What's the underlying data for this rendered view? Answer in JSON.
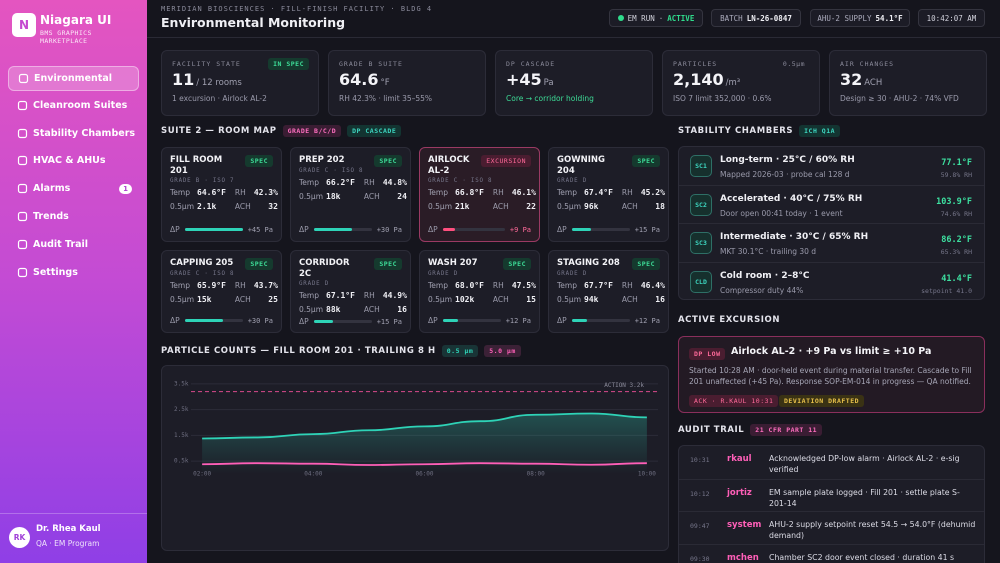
{
  "sidebar": {
    "brand_mark": "N",
    "brand": "Niagara UI",
    "brand_sub": "BMS GRAPHICS MARKETPLACE",
    "nav": [
      {
        "label": "Environmental",
        "active": true
      },
      {
        "label": "Cleanroom Suites"
      },
      {
        "label": "Stability Chambers"
      },
      {
        "label": "HVAC & AHUs"
      },
      {
        "label": "Alarms",
        "badge": "1"
      },
      {
        "label": "Trends"
      },
      {
        "label": "Audit Trail"
      },
      {
        "label": "Settings"
      }
    ],
    "user": {
      "initials": "RK",
      "name": "Dr. Rhea Kaul",
      "role": "QA · EM Program"
    }
  },
  "header": {
    "breadcrumb": "MERIDIAN BIOSCIENCES · FILL-FINISH FACILITY · BLDG 4",
    "title": "Environmental Monitoring",
    "status": {
      "label": "EM RUN",
      "separator": "·",
      "state": "ACTIVE"
    },
    "batch": {
      "label": "BATCH",
      "value": "LN-26-0847"
    },
    "supply": {
      "label": "AHU-2 SUPPLY",
      "value": "54.1°F"
    },
    "clock": "10:42:07 AM"
  },
  "kpis": [
    {
      "label": "FACILITY STATE",
      "tag": "IN SPEC",
      "tag_tone": "good",
      "value": "11",
      "unit": "/ 12 rooms",
      "sub": "1 excursion · Airlock AL-2"
    },
    {
      "label": "GRADE B SUITE",
      "value": "64.6",
      "unit": "°F",
      "sub": "RH 42.3% · limit 35–55%"
    },
    {
      "label": "DP CASCADE",
      "value": "+45",
      "unit": "Pa",
      "sub": "Core → corridor holding",
      "sub_tone": "good"
    },
    {
      "label": "PARTICLES",
      "tag": "0.5µm",
      "tag_tone": "muted",
      "value": "2,140",
      "unit": "/m³",
      "sub": "ISO 7 limit 352,000 · 0.6%"
    },
    {
      "label": "AIR CHANGES",
      "value": "32",
      "unit": "ACH",
      "sub": "Design ≥ 30 · AHU-2 · 74% VFD"
    }
  ],
  "room_map": {
    "title": "SUITE 2 — ROOM MAP",
    "tags": [
      "GRADE B/C/D",
      "DP CASCADE"
    ],
    "field_labels": {
      "temp": "Temp",
      "rh": "RH",
      "particles": "0.5µm",
      "ach": "ACH",
      "dp": "ΔP"
    },
    "rooms": [
      {
        "name": "FILL ROOM 201",
        "status": "SPEC",
        "grade": "GRADE B · ISO 7",
        "temp": "64.6°F",
        "rh": "42.3%",
        "particles": "2.1k",
        "ach": "32",
        "dp": {
          "value": 45,
          "label": "+45 Pa"
        }
      },
      {
        "name": "PREP 202",
        "status": "SPEC",
        "grade": "GRADE C · ISO 8",
        "temp": "66.2°F",
        "rh": "44.8%",
        "particles": "18k",
        "ach": "24",
        "dp": {
          "value": 30,
          "label": "+30 Pa"
        }
      },
      {
        "name": "AIRLOCK AL-2",
        "status": "EXCURSION",
        "alert": true,
        "grade": "GRADE C · ISO 8",
        "temp": "66.8°F",
        "rh": "46.1%",
        "particles": "21k",
        "ach": "22",
        "dp": {
          "value": 9,
          "label": "+9 Pa"
        }
      },
      {
        "name": "GOWNING 204",
        "status": "SPEC",
        "grade": "GRADE D",
        "temp": "67.4°F",
        "rh": "45.2%",
        "particles": "96k",
        "ach": "18",
        "dp": {
          "value": 15,
          "label": "+15 Pa"
        }
      },
      {
        "name": "CAPPING 205",
        "status": "SPEC",
        "grade": "GRADE C · ISO 8",
        "temp": "65.9°F",
        "rh": "43.7%",
        "particles": "15k",
        "ach": "25",
        "dp": {
          "value": 30,
          "label": "+30 Pa"
        }
      },
      {
        "name": "CORRIDOR 2C",
        "status": "SPEC",
        "grade": "GRADE D",
        "temp": "67.1°F",
        "rh": "44.9%",
        "particles": "88k",
        "ach": "16",
        "dp": {
          "value": 15,
          "label": "+15 Pa"
        }
      },
      {
        "name": "WASH 207",
        "status": "SPEC",
        "grade": "GRADE D",
        "temp": "68.0°F",
        "rh": "47.5%",
        "particles": "102k",
        "ach": "15",
        "dp": {
          "value": 12,
          "label": "+12 Pa"
        }
      },
      {
        "name": "STAGING 208",
        "status": "SPEC",
        "grade": "GRADE D",
        "temp": "67.7°F",
        "rh": "46.4%",
        "particles": "94k",
        "ach": "16",
        "dp": {
          "value": 12,
          "label": "+12 Pa"
        }
      }
    ]
  },
  "chart_data": {
    "type": "line",
    "title": "PARTICLE COUNTS — FILL ROOM 201 · TRAILING 8 H",
    "x": [
      2,
      3,
      4,
      5,
      6,
      7,
      8,
      9,
      10
    ],
    "xlim": [
      1.8,
      10.2
    ],
    "xticks": [
      {
        "value": 2,
        "label": "02:00"
      },
      {
        "value": 4,
        "label": "04:00"
      },
      {
        "value": 6,
        "label": "06:00"
      },
      {
        "value": 8,
        "label": "08:00"
      },
      {
        "value": 10,
        "label": "10:00"
      }
    ],
    "ylim": [
      0,
      4000
    ],
    "yticks": [
      {
        "value": 500,
        "label": "0.5k"
      },
      {
        "value": 1500,
        "label": "1.5k"
      },
      {
        "value": 2500,
        "label": "2.5k"
      },
      {
        "value": 3500,
        "label": "3.5k"
      }
    ],
    "threshold": {
      "value": 3200,
      "label": "ACTION 3.2k",
      "color": "#d94a8c"
    },
    "grid": true,
    "series": [
      {
        "name": "0.5 µm",
        "color": "#2ed3b7",
        "values": [
          1380,
          1420,
          1550,
          1700,
          1850,
          2050,
          2300,
          2350,
          2200
        ]
      },
      {
        "name": "5.0 µm",
        "color": "#ff5fb8",
        "values": [
          380,
          420,
          400,
          350,
          380,
          420,
          400,
          360,
          420
        ]
      }
    ]
  },
  "chambers": {
    "title": "STABILITY CHAMBERS",
    "tag": "ICH Q1A",
    "items": [
      {
        "code": "SC1",
        "name": "Long-term · 25°C / 60% RH",
        "sub": "Mapped 2026-03 · probe cal 128 d",
        "reading": "77.1°F",
        "secondary": "59.8% RH"
      },
      {
        "code": "SC2",
        "name": "Accelerated · 40°C / 75% RH",
        "sub": "Door open 00:41 today · 1 event",
        "reading": "103.9°F",
        "secondary": "74.6% RH"
      },
      {
        "code": "SC3",
        "name": "Intermediate · 30°C / 65% RH",
        "sub": "MKT 30.1°C · trailing 30 d",
        "reading": "86.2°F",
        "secondary": "65.3% RH"
      },
      {
        "code": "CLD",
        "name": "Cold room · 2–8°C",
        "sub": "Compressor duty 44%",
        "reading": "41.4°F",
        "secondary": "setpoint 41.0"
      }
    ]
  },
  "excursion": {
    "title": "ACTIVE EXCURSION",
    "tag": "DP LOW",
    "headline": "Airlock AL-2 · +9 Pa vs limit ≥ +10 Pa",
    "body": "Started 10:28 AM · door-held event during material transfer. Cascade to Fill 201 unaffected (+45 Pa). Response SOP-EM-014 in progress — QA notified.",
    "chips": [
      "ACK · R.KAUL 10:31",
      "DEVIATION DRAFTED"
    ]
  },
  "audit": {
    "title": "AUDIT TRAIL",
    "tag": "21 CFR PART 11",
    "entries": [
      {
        "time": "10:31",
        "user": "rkaul",
        "text": "Acknowledged DP-low alarm · Airlock AL-2 · e-sig verified"
      },
      {
        "time": "10:12",
        "user": "jortiz",
        "text": "EM sample plate logged · Fill 201 · settle plate S-201-14"
      },
      {
        "time": "09:47",
        "user": "system",
        "text": "AHU-2 supply setpoint reset 54.5 → 54.0°F (dehumid demand)"
      },
      {
        "time": "09:30",
        "user": "mchen",
        "text": "Chamber SC2 door event closed · duration 41 s"
      }
    ]
  }
}
